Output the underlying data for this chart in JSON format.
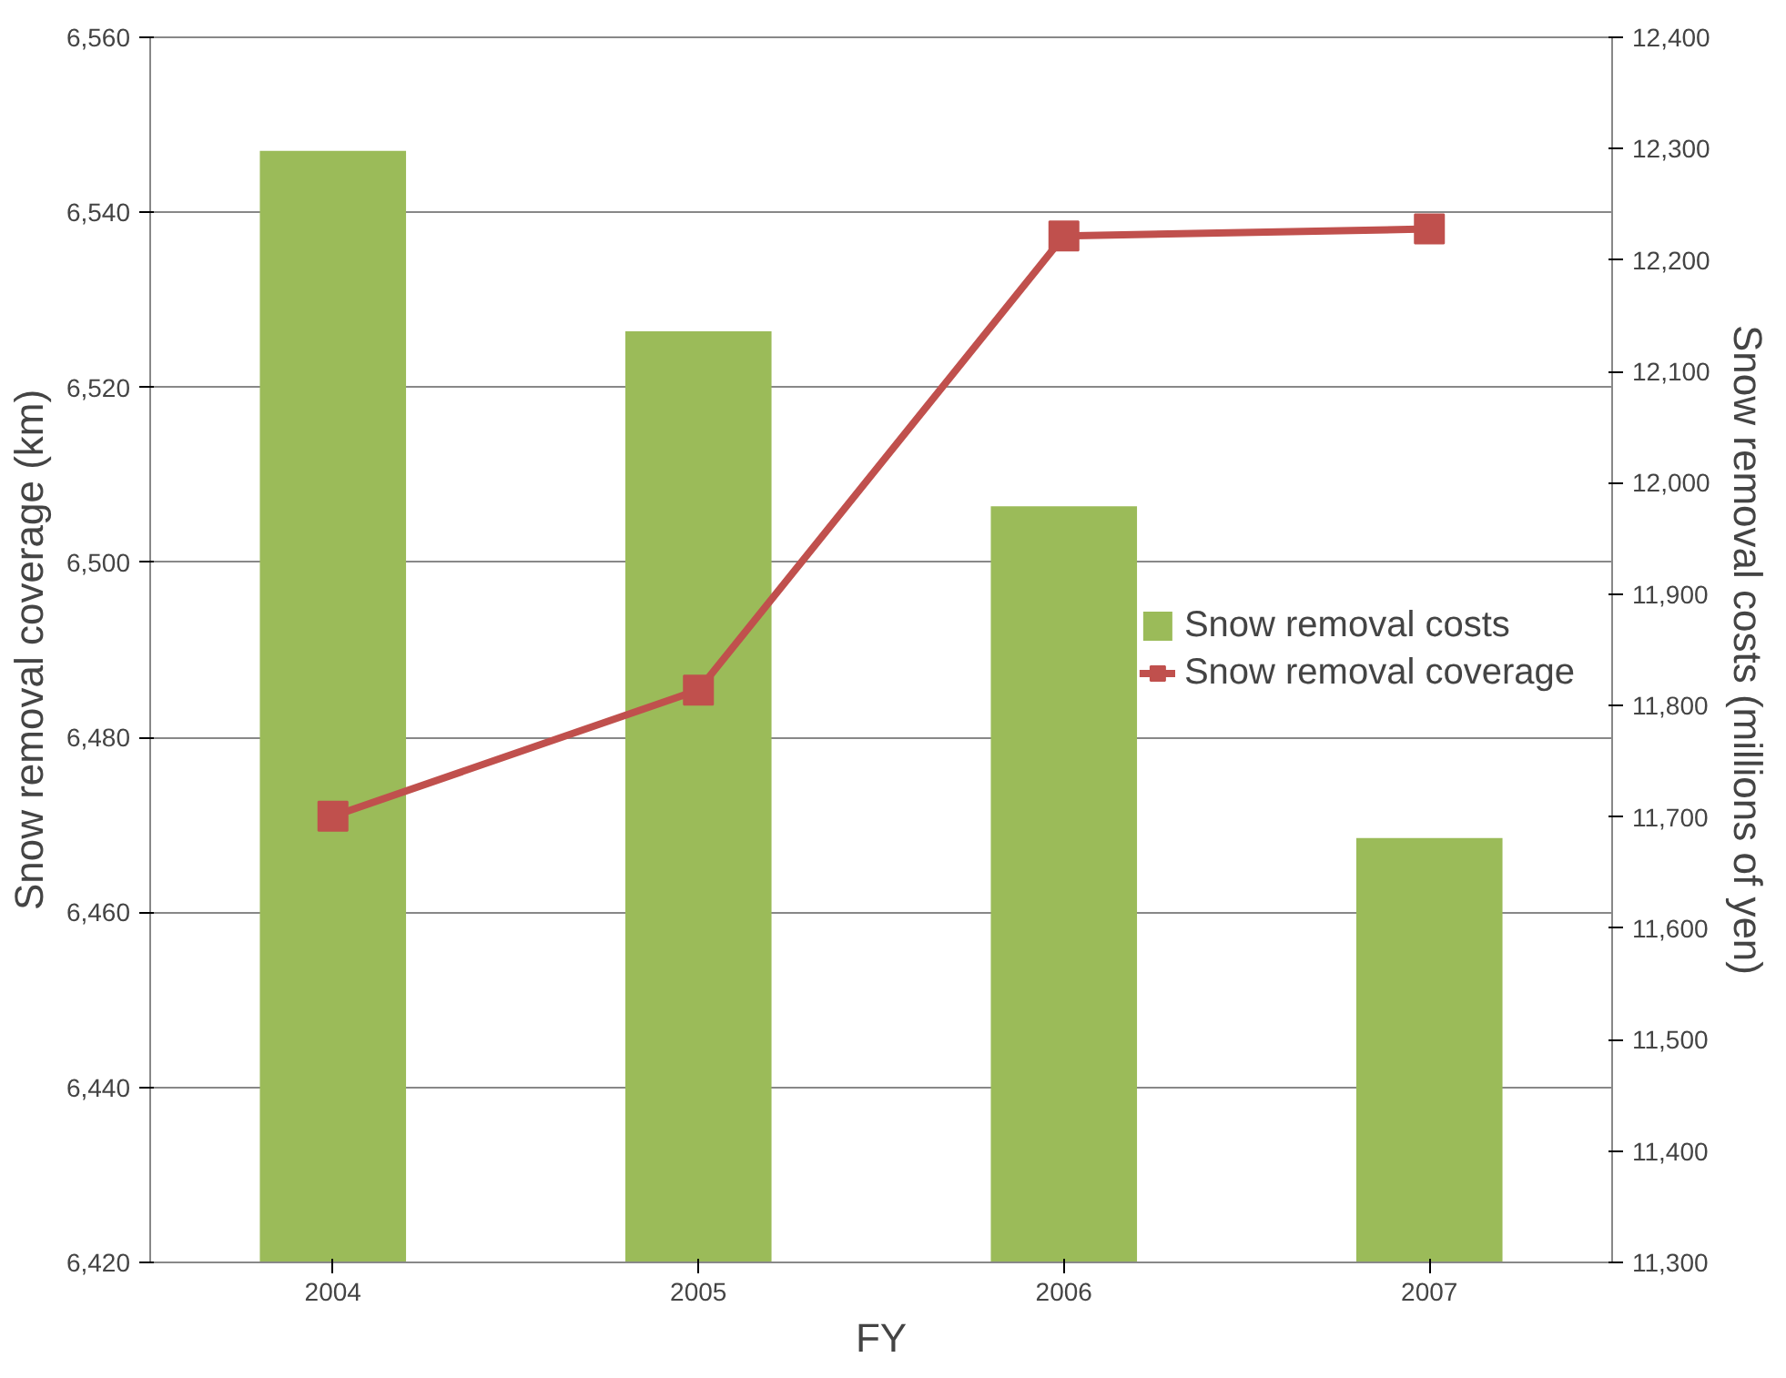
{
  "chart_data": {
    "type": "bar",
    "categories": [
      "2004",
      "2005",
      "2006",
      "2007"
    ],
    "xlabel": "FY",
    "ylabel": "Snow removal coverage (km)",
    "y2label": "Snow removal costs (millions of yen)",
    "series": [
      {
        "name": "Snow removal costs",
        "axis": "y2",
        "color": "#9bbb59",
        "values": [
          12298,
          12136,
          11979,
          11681
        ]
      },
      {
        "name": "Snow removal coverage",
        "type": "line",
        "color": "#c0504d",
        "marker": "square",
        "values": [
          6471,
          6485.4,
          6537.3,
          6538.1
        ]
      }
    ],
    "ylim": [
      6420,
      6560
    ],
    "yticks": [
      {
        "value": 6420,
        "label": "6,420"
      },
      {
        "value": 6440,
        "label": "6,440"
      },
      {
        "value": 6460,
        "label": "6,460"
      },
      {
        "value": 6480,
        "label": "6,480"
      },
      {
        "value": 6500,
        "label": "6,500"
      },
      {
        "value": 6520,
        "label": "6,520"
      },
      {
        "value": 6540,
        "label": "6,540"
      },
      {
        "value": 6560,
        "label": "6,560"
      }
    ],
    "y2lim": [
      11300,
      12400
    ],
    "y2ticks": [
      {
        "value": 11300,
        "label": "11,300"
      },
      {
        "value": 11400,
        "label": "11,400"
      },
      {
        "value": 11500,
        "label": "11,500"
      },
      {
        "value": 11600,
        "label": "11,600"
      },
      {
        "value": 11700,
        "label": "11,700"
      },
      {
        "value": 11800,
        "label": "11,800"
      },
      {
        "value": 11900,
        "label": "11,900"
      },
      {
        "value": 12000,
        "label": "12,000"
      },
      {
        "value": 12100,
        "label": "12,100"
      },
      {
        "value": 12200,
        "label": "12,200"
      },
      {
        "value": 12300,
        "label": "12,300"
      },
      {
        "value": 12400,
        "label": "12,400"
      }
    ],
    "grid": "y",
    "legend": "right"
  }
}
